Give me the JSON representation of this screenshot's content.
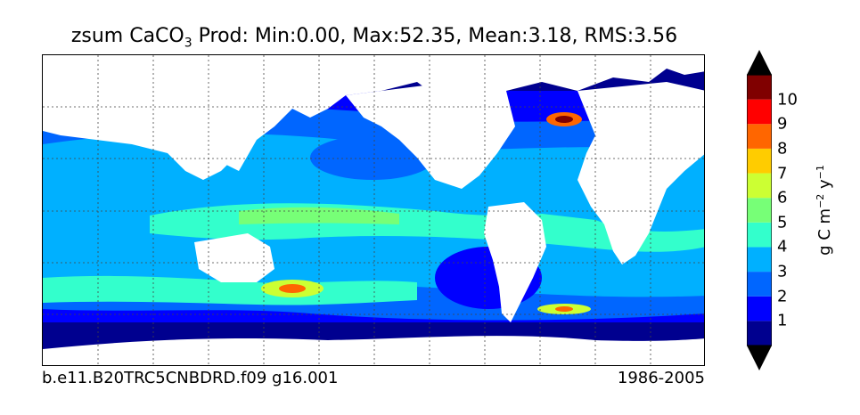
{
  "title": {
    "variable": "zsum CaCO",
    "subscript": "3",
    "stats": "Prod: Min:0.00, Max:52.35, Mean:3.18, RMS:3.56"
  },
  "footer": {
    "case": "b.e11.B20TRC5CNBDRD.f09 g16.001",
    "period": "1986-2005"
  },
  "colorbar": {
    "units_text": "g C m",
    "units_exp1": "−2",
    "units_mid": " y",
    "units_exp2": "−1",
    "levels": [
      "1",
      "2",
      "3",
      "4",
      "5",
      "6",
      "7",
      "8",
      "9",
      "10"
    ],
    "colors": [
      "#00008f",
      "#0000ff",
      "#0066ff",
      "#00b0ff",
      "#33ffcc",
      "#77ff77",
      "#ccff33",
      "#ffcc00",
      "#ff6600",
      "#ff0000",
      "#800000"
    ],
    "extend": "both"
  },
  "map_data": {
    "type": "filled-contour map",
    "projection": "equirectangular",
    "land_color": "#ffffff",
    "grid": "dotted"
  }
}
